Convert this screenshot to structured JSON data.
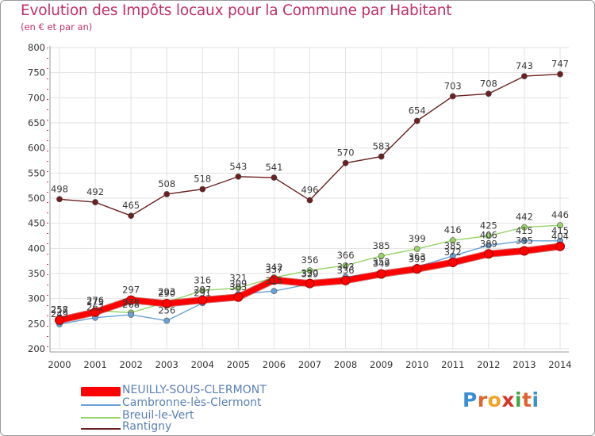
{
  "header": {
    "title": "Evolution des Impôts locaux pour la Commune par Habitant",
    "subtitle": "(en € et par an)"
  },
  "logo": {
    "letters": [
      "P",
      "r",
      "o",
      "x",
      "i",
      "t",
      "i"
    ],
    "colors": [
      "#3a8fd4",
      "#e2632a",
      "#f0a326",
      "#d9342b",
      "#3fa742",
      "#e2632a",
      "#3a8fd4"
    ]
  },
  "chart_data": {
    "type": "line",
    "title": "Evolution des Impôts locaux pour la Commune par Habitant",
    "subtitle": "(en € et par an)",
    "x": [
      "2000",
      "2001",
      "2002",
      "2003",
      "2004",
      "2005",
      "2006",
      "2007",
      "2008",
      "2009",
      "2010",
      "2011",
      "2012",
      "2013",
      "2014"
    ],
    "y_ticks": [
      200,
      250,
      300,
      350,
      400,
      450,
      500,
      550,
      600,
      650,
      700,
      750,
      800
    ],
    "ylim": [
      200,
      800
    ],
    "grid": true,
    "legend_position": "bottom-left",
    "series": [
      {
        "name": "NEUILLY-SOUS-CLERMONT",
        "color": "#ff0000",
        "values": [
          257,
          273,
          297,
          290,
          297,
          303,
          337,
          330,
          336,
          349,
          359,
          372,
          389,
          395,
          404
        ]
      },
      {
        "name": "Cambronne-lès-Clermont",
        "color": "#6aa0d8",
        "values": [
          249,
          262,
          268,
          256,
          291,
          309,
          315,
          329,
          343,
          352,
          363,
          385,
          406,
          415,
          415
        ]
      },
      {
        "name": "Breuil-le-Vert",
        "color": "#96d268",
        "values": [
          258,
          276,
          272,
          293,
          316,
          321,
          342,
          356,
          366,
          385,
          399,
          416,
          425,
          442,
          446
        ]
      },
      {
        "name": "Rantigny",
        "color": "#6b1f1f",
        "values": [
          498,
          492,
          465,
          508,
          518,
          543,
          541,
          496,
          570,
          583,
          654,
          703,
          708,
          743,
          747
        ]
      }
    ]
  }
}
